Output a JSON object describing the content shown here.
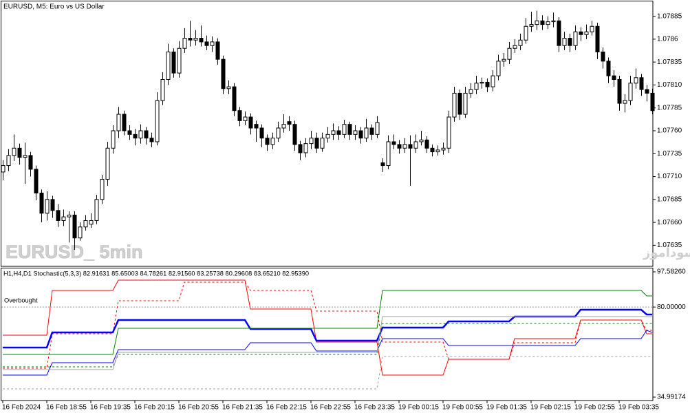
{
  "chart_data": [
    {
      "type": "candlestick",
      "title": "EURUSD, M5: Euro vs US Dollar",
      "watermark": "EURUSD_ 5min",
      "annotation": "انتشار در سایت سودآموز",
      "up_color": "#ffffff",
      "down_color": "#000000",
      "xlim": [
        -0.5,
        118.125
      ],
      "ylim": [
        1.07612,
        1.07902
      ],
      "yticks": [
        1.07885,
        1.0786,
        1.07835,
        {
          "value": 1.0781,
          "label": "1.07810"
        },
        1.07785,
        {
          "value": 1.0776,
          "label": "1.07760"
        },
        1.07735,
        {
          "value": 1.0771,
          "label": "1.07710"
        },
        1.07685,
        {
          "value": 1.0766,
          "label": "1.07660"
        },
        1.07635
      ],
      "ohlc": [
        [
          1.07715,
          1.07728,
          1.07706,
          1.07722
        ],
        [
          1.07722,
          1.0774,
          1.07716,
          1.07733
        ],
        [
          1.07733,
          1.07756,
          1.07727,
          1.07741
        ],
        [
          1.07741,
          1.07746,
          1.07723,
          1.07731
        ],
        [
          1.07731,
          1.07747,
          1.07702,
          1.07733
        ],
        [
          1.07733,
          1.07737,
          1.0771,
          1.07718
        ],
        [
          1.07718,
          1.07722,
          1.07684,
          1.07692
        ],
        [
          1.07692,
          1.07696,
          1.0766,
          1.0767
        ],
        [
          1.0767,
          1.07694,
          1.07662,
          1.07685
        ],
        [
          1.07685,
          1.07689,
          1.07665,
          1.07673
        ],
        [
          1.07673,
          1.0768,
          1.07655,
          1.07662
        ],
        [
          1.07662,
          1.07674,
          1.07656,
          1.07666
        ],
        [
          1.07666,
          1.07672,
          1.07638,
          1.07668
        ],
        [
          1.07668,
          1.07672,
          1.0763,
          1.07643
        ],
        [
          1.07643,
          1.0766,
          1.0764,
          1.07655
        ],
        [
          1.07655,
          1.07668,
          1.07651,
          1.07662
        ],
        [
          1.07658,
          1.0767,
          1.07654,
          1.07662
        ],
        [
          1.07662,
          1.0769,
          1.07658,
          1.07685
        ],
        [
          1.07685,
          1.07712,
          1.0768,
          1.07707
        ],
        [
          1.07707,
          1.07748,
          1.077,
          1.07741
        ],
        [
          1.07741,
          1.07766,
          1.07735,
          1.0776
        ],
        [
          1.0776,
          1.07786,
          1.07752,
          1.07778
        ],
        [
          1.07778,
          1.07782,
          1.07755,
          1.0776
        ],
        [
          1.0776,
          1.07766,
          1.0775,
          1.07756
        ],
        [
          1.07756,
          1.07762,
          1.07744,
          1.07752
        ],
        [
          1.07752,
          1.07767,
          1.07746,
          1.0776
        ],
        [
          1.0776,
          1.07764,
          1.07745,
          1.07752
        ],
        [
          1.07752,
          1.07758,
          1.07742,
          1.07748
        ],
        [
          1.07748,
          1.07802,
          1.07744,
          1.07793
        ],
        [
          1.07793,
          1.07824,
          1.07788,
          1.07816
        ],
        [
          1.07816,
          1.07855,
          1.0781,
          1.07846
        ],
        [
          1.07846,
          1.0785,
          1.07818,
          1.07823
        ],
        [
          1.07823,
          1.07858,
          1.07818,
          1.0785
        ],
        [
          1.0785,
          1.07872,
          1.07845,
          1.07861
        ],
        [
          1.07861,
          1.0788,
          1.07852,
          1.07859
        ],
        [
          1.07859,
          1.0787,
          1.07853,
          1.07861
        ],
        [
          1.07861,
          1.07875,
          1.07852,
          1.07857
        ],
        [
          1.07857,
          1.07864,
          1.07848,
          1.07853
        ],
        [
          1.07853,
          1.07863,
          1.07846,
          1.07857
        ],
        [
          1.07857,
          1.07861,
          1.07832,
          1.07838
        ],
        [
          1.07838,
          1.07842,
          1.078,
          1.07806
        ],
        [
          1.07806,
          1.07815,
          1.078,
          1.07808
        ],
        [
          1.07808,
          1.07812,
          1.07776,
          1.07782
        ],
        [
          1.07782,
          1.07786,
          1.07765,
          1.07771
        ],
        [
          1.07771,
          1.07781,
          1.07766,
          1.07775
        ],
        [
          1.07775,
          1.07779,
          1.07756,
          1.07763
        ],
        [
          1.07767,
          1.07771,
          1.07748,
          1.07763
        ],
        [
          1.07763,
          1.07767,
          1.07742,
          1.07752
        ],
        [
          1.07752,
          1.07756,
          1.07738,
          1.07745
        ],
        [
          1.07745,
          1.07758,
          1.0774,
          1.07752
        ],
        [
          1.07752,
          1.0777,
          1.07748,
          1.07763
        ],
        [
          1.07763,
          1.07778,
          1.07758,
          1.07767
        ],
        [
          1.0777,
          1.07776,
          1.0776,
          1.07767
        ],
        [
          1.07767,
          1.07771,
          1.07738,
          1.07745
        ],
        [
          1.07745,
          1.07749,
          1.07728,
          1.07736
        ],
        [
          1.07736,
          1.07752,
          1.07731,
          1.07746
        ],
        [
          1.07746,
          1.0776,
          1.0774,
          1.07752
        ],
        [
          1.07752,
          1.07758,
          1.07736,
          1.07741
        ],
        [
          1.07741,
          1.07758,
          1.07737,
          1.07752
        ],
        [
          1.07752,
          1.07764,
          1.07747,
          1.07756
        ],
        [
          1.07756,
          1.07768,
          1.0775,
          1.0776
        ],
        [
          1.0776,
          1.07765,
          1.0775,
          1.07756
        ],
        [
          1.07756,
          1.07772,
          1.07752,
          1.07767
        ],
        [
          1.07767,
          1.0777,
          1.0775,
          1.07756
        ],
        [
          1.07756,
          1.07766,
          1.0775,
          1.0776
        ],
        [
          1.0776,
          1.07764,
          1.07746,
          1.07752
        ],
        [
          1.07752,
          1.07773,
          1.07748,
          1.07763
        ],
        [
          1.07763,
          1.07767,
          1.0775,
          1.07756
        ],
        [
          1.07756,
          1.07776,
          1.07752,
          1.07769
        ],
        [
          1.07725,
          1.0773,
          1.07715,
          1.07722
        ],
        [
          1.07722,
          1.07755,
          1.07718,
          1.07748
        ],
        [
          1.07748,
          1.07756,
          1.0774,
          1.07745
        ],
        [
          1.07745,
          1.0775,
          1.07735,
          1.07741
        ],
        [
          1.07741,
          1.07752,
          1.07736,
          1.07745
        ],
        [
          1.07745,
          1.07755,
          1.077,
          1.07741
        ],
        [
          1.07741,
          1.07756,
          1.07736,
          1.07748
        ],
        [
          1.07748,
          1.0776,
          1.07744,
          1.0775
        ],
        [
          1.0775,
          1.07754,
          1.07736,
          1.07741
        ],
        [
          1.07741,
          1.07745,
          1.07732,
          1.07737
        ],
        [
          1.07737,
          1.07744,
          1.07733,
          1.07739
        ],
        [
          1.07739,
          1.07747,
          1.07734,
          1.07741
        ],
        [
          1.07741,
          1.07782,
          1.07736,
          1.07775
        ],
        [
          1.07775,
          1.07808,
          1.0777,
          1.07801
        ],
        [
          1.07801,
          1.07805,
          1.07772,
          1.07778
        ],
        [
          1.07778,
          1.07808,
          1.07774,
          1.07801
        ],
        [
          1.07801,
          1.07812,
          1.07796,
          1.07805
        ],
        [
          1.07805,
          1.0782,
          1.078,
          1.07812
        ],
        [
          1.07812,
          1.07818,
          1.07806,
          1.07813
        ],
        [
          1.07813,
          1.07817,
          1.07802,
          1.07808
        ],
        [
          1.07808,
          1.07826,
          1.07803,
          1.0782
        ],
        [
          1.0782,
          1.07843,
          1.07815,
          1.07836
        ],
        [
          1.07836,
          1.07845,
          1.0783,
          1.07838
        ],
        [
          1.07838,
          1.07857,
          1.07833,
          1.0785
        ],
        [
          1.0785,
          1.0786,
          1.07845,
          1.07853
        ],
        [
          1.07853,
          1.07866,
          1.07848,
          1.07859
        ],
        [
          1.07859,
          1.07883,
          1.07855,
          1.07874
        ],
        [
          1.07874,
          1.0789,
          1.07868,
          1.07876
        ],
        [
          1.07876,
          1.07891,
          1.0787,
          1.0788
        ],
        [
          1.0788,
          1.07886,
          1.0787,
          1.07876
        ],
        [
          1.07876,
          1.07885,
          1.07871,
          1.07879
        ],
        [
          1.07879,
          1.07889,
          1.07873,
          1.0788
        ],
        [
          1.0788,
          1.07884,
          1.07846,
          1.07853
        ],
        [
          1.07853,
          1.07868,
          1.07848,
          1.07861
        ],
        [
          1.07861,
          1.07866,
          1.07846,
          1.07853
        ],
        [
          1.07853,
          1.07875,
          1.07848,
          1.07868
        ],
        [
          1.07868,
          1.07873,
          1.07858,
          1.07865
        ],
        [
          1.07865,
          1.07876,
          1.0786,
          1.07868
        ],
        [
          1.07868,
          1.0788,
          1.07864,
          1.07874
        ],
        [
          1.07874,
          1.07878,
          1.07838,
          1.07846
        ],
        [
          1.07846,
          1.07851,
          1.07828,
          1.07836
        ],
        [
          1.07836,
          1.0784,
          1.07812,
          1.0782
        ],
        [
          1.0782,
          1.07826,
          1.07808,
          1.07816
        ],
        [
          1.07816,
          1.0782,
          1.07782,
          1.0779
        ],
        [
          1.0779,
          1.078,
          1.0778,
          1.07793
        ],
        [
          1.07793,
          1.0782,
          1.07788,
          1.07812
        ],
        [
          1.07812,
          1.07828,
          1.07806,
          1.07818
        ],
        [
          1.07818,
          1.07822,
          1.07798,
          1.07805
        ],
        [
          1.07805,
          1.0781,
          1.07792,
          1.07801
        ],
        [
          1.07801,
          1.07806,
          1.07778,
          1.07782
        ]
      ]
    },
    {
      "type": "line",
      "title": "H1,H4,D1 Stochastic(5,3,3) 82.91631 85.65003 84.78261 82.91560 83.25738 80.29608 83.65210 82.95390",
      "level": {
        "value": 80,
        "label": "Overbought"
      },
      "xlim": [
        -0.5,
        118.125
      ],
      "ylim": [
        33.28,
        99.65
      ],
      "yticks": [
        {
          "value": 97.5826,
          "label": "97.58260"
        },
        {
          "value": 80,
          "label": "80.00000"
        },
        34.99174
      ],
      "xticks": [
        {
          "value": 0,
          "label": "16 Feb 2024"
        },
        {
          "value": 8,
          "label": "16 Feb 18:55"
        },
        {
          "value": 16,
          "label": "16 Feb 19:35"
        },
        {
          "value": 24,
          "label": "16 Feb 20:15"
        },
        {
          "value": 32,
          "label": "16 Feb 20:55"
        },
        {
          "value": 40,
          "label": "16 Feb 21:35"
        },
        {
          "value": 48,
          "label": "16 Feb 22:15"
        },
        {
          "value": 56,
          "label": "16 Feb 22:55"
        },
        {
          "value": 64,
          "label": "16 Feb 23:35"
        },
        {
          "value": 72,
          "label": "19 Feb 00:15"
        },
        {
          "value": 80,
          "label": "19 Feb 00:55"
        },
        {
          "value": 88,
          "label": "19 Feb 01:35"
        },
        {
          "value": 96,
          "label": "19 Feb 02:15"
        },
        {
          "value": 104,
          "label": "19 Feb 02:55"
        },
        {
          "value": 112,
          "label": "19 Feb 03:35"
        }
      ],
      "series": [
        {
          "color": "#ff0000",
          "style": "solid",
          "width": 1,
          "x": [
            0,
            8,
            9,
            20,
            21,
            44,
            45,
            56,
            57,
            68,
            69,
            80,
            81,
            92,
            93,
            104,
            105,
            116,
            117,
            118
          ],
          "values": [
            65.94,
            65.94,
            88.3,
            88.3,
            93.46,
            93.46,
            79.01,
            79.01,
            62.51,
            62.51,
            46.0,
            46.0,
            53.91,
            53.91,
            64.23,
            64.23,
            73.51,
            73.51,
            66.63,
            66.63
          ]
        },
        {
          "color": "#ff0000",
          "style": "dashed",
          "width": 1,
          "x": [
            0,
            8,
            9,
            20,
            21,
            32,
            33,
            44,
            45,
            56,
            57,
            68,
            69,
            80,
            81,
            92,
            93,
            104,
            105,
            116,
            117,
            118
          ],
          "values": [
            49.44,
            49.44,
            66.63,
            66.63,
            83.14,
            83.14,
            92.42,
            92.42,
            88.3,
            88.3,
            77.98,
            77.98,
            62.51,
            62.51,
            53.91,
            53.91,
            62.16,
            62.16,
            73.51,
            73.51,
            68.35,
            68.35
          ]
        },
        {
          "color": "#0000ff",
          "style": "solid",
          "width": 2.5,
          "x": [
            0,
            8,
            9,
            20,
            21,
            44,
            45,
            56,
            57,
            68,
            69,
            80,
            81,
            92,
            93,
            104,
            105,
            116,
            117,
            118
          ],
          "values": [
            59.76,
            59.76,
            67.32,
            67.32,
            73.51,
            73.51,
            69.04,
            69.04,
            63.19,
            63.19,
            69.73,
            69.73,
            72.82,
            72.82,
            75.23,
            75.23,
            78.67,
            78.67,
            76.26,
            76.26
          ]
        },
        {
          "color": "#0000ff",
          "style": "solid",
          "width": 1,
          "x": [
            0,
            8,
            9,
            20,
            21,
            44,
            45,
            56,
            57,
            68,
            69,
            80,
            81,
            92,
            93,
            104,
            105,
            116,
            117,
            118
          ],
          "values": [
            46.0,
            46.0,
            52.19,
            52.19,
            58.72,
            58.72,
            62.16,
            62.16,
            58.04,
            58.04,
            64.23,
            64.23,
            60.79,
            60.79,
            60.79,
            60.79,
            64.23,
            64.23,
            68.35,
            67.32
          ]
        },
        {
          "color": "#008000",
          "style": "solid",
          "width": 1,
          "x": [
            0,
            20,
            21,
            68,
            69,
            116,
            117,
            118
          ],
          "values": [
            56.32,
            56.32,
            69.38,
            69.38,
            88.3,
            88.3,
            85.55,
            85.55
          ]
        },
        {
          "color": "#008000",
          "style": "dashed",
          "width": 1,
          "x": [
            0,
            20,
            21,
            68,
            69,
            118
          ],
          "values": [
            50.13,
            50.13,
            56.32,
            56.32,
            71.79,
            71.79
          ]
        },
        {
          "color": "#a0a0a0",
          "style": "solid",
          "width": 1,
          "x": [
            0,
            20,
            21,
            68,
            69,
            118
          ],
          "values": [
            48.75,
            48.75,
            57.35,
            57.35,
            75.23,
            75.23
          ]
        },
        {
          "color": "#a0a0a0",
          "style": "dashed",
          "width": 1,
          "x": [
            0,
            68,
            69,
            118
          ],
          "values": [
            39.12,
            39.12,
            55.28,
            55.28
          ]
        }
      ]
    }
  ]
}
